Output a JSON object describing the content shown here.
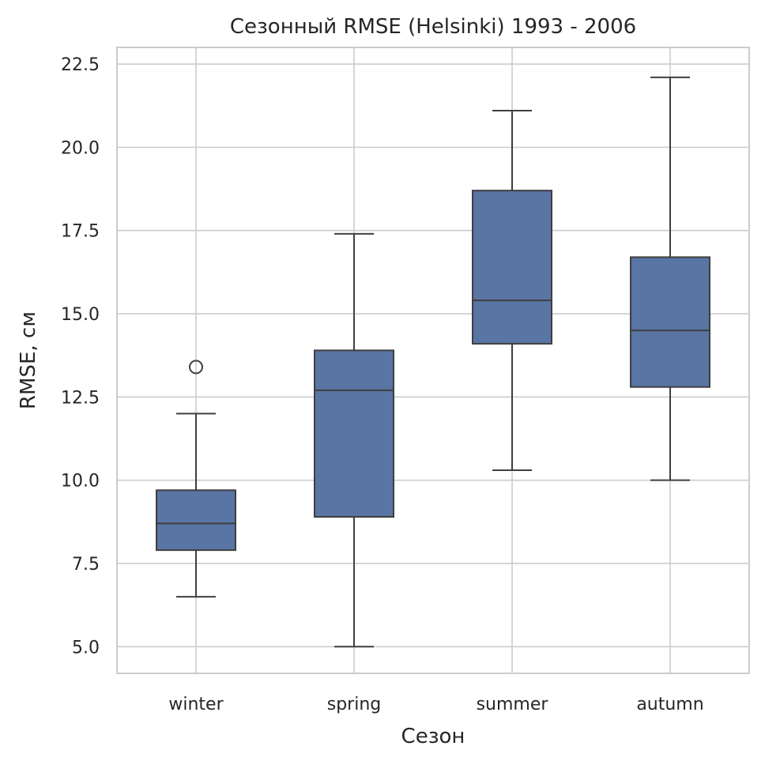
{
  "chart_data": {
    "type": "box",
    "title": "Сезонный RMSE (Helsinki) 1993 - 2006",
    "xlabel": "Сезон",
    "ylabel": "RMSE, см",
    "ylim": [
      4.2,
      23.0
    ],
    "yticks": [
      5.0,
      7.5,
      10.0,
      12.5,
      15.0,
      17.5,
      20.0,
      22.5
    ],
    "ytick_labels": [
      "5.0",
      "7.5",
      "10.0",
      "12.5",
      "15.0",
      "17.5",
      "20.0",
      "22.5"
    ],
    "grid": true,
    "box_color": "#5875a4",
    "categories": [
      "winter",
      "spring",
      "summer",
      "autumn"
    ],
    "boxes": [
      {
        "category": "winter",
        "whisker_low": 6.5,
        "q1": 7.9,
        "median": 8.7,
        "q3": 9.7,
        "whisker_high": 12.0,
        "fliers": [
          13.4
        ]
      },
      {
        "category": "spring",
        "whisker_low": 5.0,
        "q1": 8.9,
        "median": 12.7,
        "q3": 13.9,
        "whisker_high": 17.4,
        "fliers": []
      },
      {
        "category": "summer",
        "whisker_low": 10.3,
        "q1": 14.1,
        "median": 15.4,
        "q3": 18.7,
        "whisker_high": 21.1,
        "fliers": []
      },
      {
        "category": "autumn",
        "whisker_low": 10.0,
        "q1": 12.8,
        "median": 14.5,
        "q3": 16.7,
        "whisker_high": 22.1,
        "fliers": []
      }
    ]
  }
}
